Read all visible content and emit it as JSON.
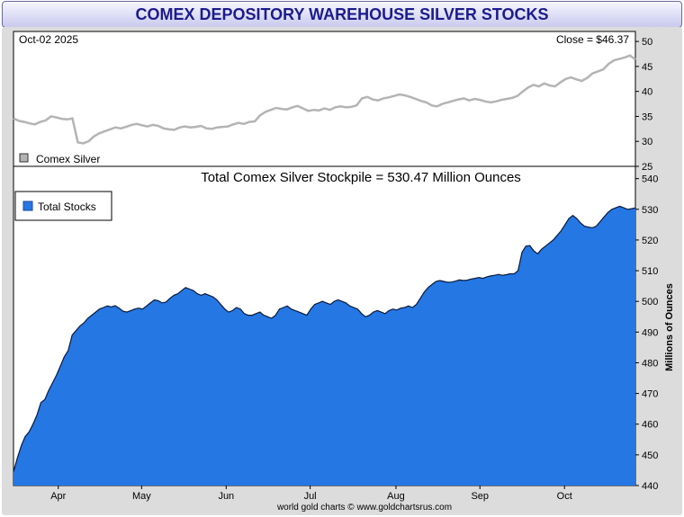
{
  "header": {
    "title": "COMEX DEPOSITORY WAREHOUSE SILVER STOCKS"
  },
  "colors": {
    "price_line": "#b4b4b4",
    "stock_fill": "#2577e3",
    "panel_bg": "#dcdcdc"
  },
  "chart_data": [
    {
      "type": "line",
      "date_label": "Oct-02  2025",
      "close_label": "Close = $46.37",
      "legend": {
        "label": "Comex Silver",
        "placement": "bottom-left"
      },
      "yticks": [
        25,
        30,
        35,
        40,
        45,
        50
      ],
      "ylim": [
        25,
        52
      ],
      "series": [
        {
          "name": "Comex Silver",
          "values": [
            34.6,
            34.1,
            33.9,
            33.6,
            33.4,
            33.9,
            34.2,
            35.0,
            34.8,
            34.5,
            34.4,
            34.6,
            29.8,
            29.6,
            30.0,
            31.0,
            31.6,
            32.0,
            32.4,
            32.8,
            32.6,
            32.9,
            33.3,
            33.5,
            33.2,
            33.0,
            33.3,
            33.1,
            32.6,
            32.4,
            32.3,
            32.8,
            33.0,
            32.8,
            32.9,
            33.1,
            32.6,
            32.5,
            32.8,
            32.9,
            33.0,
            33.4,
            33.7,
            33.5,
            33.9,
            34.0,
            35.2,
            35.9,
            36.3,
            36.7,
            36.5,
            36.4,
            36.8,
            37.1,
            36.6,
            36.1,
            36.3,
            36.2,
            36.6,
            36.3,
            36.8,
            37.0,
            36.8,
            36.9,
            37.2,
            38.6,
            38.9,
            38.4,
            38.2,
            38.6,
            38.8,
            39.1,
            39.4,
            39.2,
            38.9,
            38.5,
            38.1,
            37.8,
            37.2,
            37.0,
            37.5,
            37.8,
            38.1,
            38.4,
            38.6,
            38.2,
            38.5,
            38.3,
            38.0,
            37.8,
            38.0,
            38.3,
            38.5,
            38.7,
            39.1,
            40.0,
            40.8,
            41.3,
            41.0,
            41.6,
            41.2,
            41.0,
            41.8,
            42.5,
            42.8,
            42.4,
            42.1,
            42.7,
            43.6,
            44.0,
            44.4,
            45.5,
            46.2,
            46.5,
            46.8,
            47.2,
            46.37
          ]
        }
      ]
    },
    {
      "type": "area",
      "title": "Total Comex Silver Stockpile = 530.47 Million Ounces",
      "ylabel": "Millions of Ounces",
      "legend": {
        "label": "Total Stocks",
        "placement": "top-left"
      },
      "yticks": [
        440,
        450,
        460,
        470,
        480,
        490,
        500,
        510,
        520,
        530,
        540
      ],
      "ylim": [
        440,
        544
      ],
      "x_labels": [
        "Apr",
        "May",
        "Jun",
        "Jul",
        "Aug",
        "Sep",
        "Oct"
      ],
      "x_label_positions": [
        0.072,
        0.206,
        0.342,
        0.477,
        0.615,
        0.75,
        0.886
      ],
      "footer": "world gold charts © www.goldchartsrus.com",
      "series": [
        {
          "name": "Total Stocks",
          "values": [
            444.5,
            449,
            453,
            456,
            457.5,
            460,
            463,
            467,
            468,
            471,
            473.5,
            476,
            479,
            482,
            484,
            489,
            490.5,
            492,
            493,
            494.5,
            495.5,
            496.5,
            497.5,
            498,
            498.5,
            498.2,
            498.6,
            497.8,
            496.8,
            496.5,
            497,
            497.5,
            497.8,
            497.5,
            498.5,
            499.5,
            500.5,
            500.2,
            499.5,
            499.8,
            501,
            502,
            502.5,
            503.5,
            504.5,
            504,
            503.5,
            502.5,
            502,
            502.5,
            502,
            501.5,
            500.5,
            499,
            497.5,
            496.5,
            497,
            498,
            497.5,
            496,
            495.5,
            495.5,
            496,
            496.5,
            495.5,
            495,
            494.5,
            495.5,
            497.5,
            498,
            498.5,
            497.5,
            497,
            496.5,
            496,
            495.5,
            497.5,
            499,
            499.5,
            500,
            499.5,
            499,
            500,
            500.5,
            500,
            499.5,
            498.5,
            498,
            497.5,
            496,
            495,
            495.5,
            496.5,
            497,
            496.5,
            496,
            497,
            497.5,
            497.2,
            497.8,
            498,
            498.5,
            498,
            499,
            501,
            503,
            504.5,
            505.5,
            506.5,
            506.8,
            506.5,
            506.2,
            506.3,
            506.6,
            507,
            506.8,
            506.9,
            507.3,
            507.5,
            507.8,
            507.5,
            508,
            508.3,
            508.5,
            508.8,
            508.5,
            508.7,
            509,
            509,
            510,
            516,
            518,
            518.2,
            516.5,
            515.5,
            517,
            518,
            519,
            520,
            521.5,
            523,
            525,
            527,
            528,
            527,
            525.5,
            524.5,
            524.2,
            524,
            524.5,
            526,
            527.5,
            529,
            530,
            530.5,
            531,
            530.5,
            530,
            530.2,
            530.47
          ]
        }
      ]
    }
  ]
}
